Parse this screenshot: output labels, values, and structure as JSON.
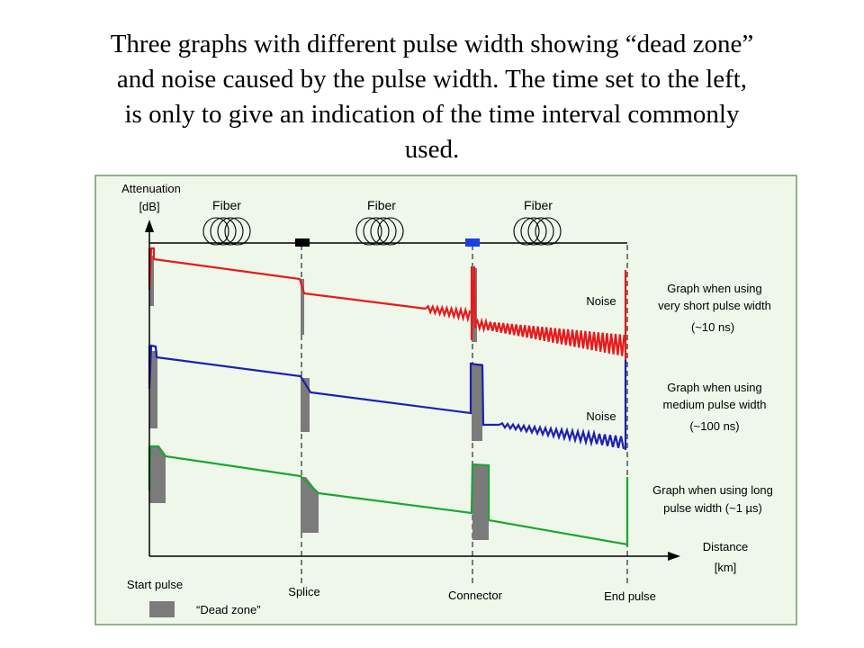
{
  "caption": [
    "Three graphs with different pulse width showing “dead zone”",
    "and noise caused by the pulse width. The time set to the left,",
    "is only to give an indication of the time interval commonly",
    "used."
  ],
  "axes": {
    "y_label_1": "Attenuation",
    "y_label_2": "[dB]",
    "x_label_1": "Distance",
    "x_label_2": "[km]"
  },
  "fibers": [
    "Fiber",
    "Fiber",
    "Fiber"
  ],
  "events": {
    "start": "Start pulse",
    "splice": "Splice",
    "connector": "Connector",
    "end": "End pulse"
  },
  "noise_labels": [
    "Noise",
    "Noise"
  ],
  "graphs": [
    {
      "line1": "Graph when using",
      "line2": "very short pulse width",
      "line3": "(~10 ns)",
      "color": "#e8191c"
    },
    {
      "line1": "Graph when using",
      "line2": "medium pulse width",
      "line3": "(~100 ns)",
      "color": "#1f1fb0"
    },
    {
      "line1": "Graph when using long",
      "line2": "pulse width (~1 µs)",
      "color": "#1aa531"
    }
  ],
  "legend": {
    "label": "“Dead zone”"
  },
  "colors": {
    "panel_bg": "#eef7ea",
    "panel_border": "#6f9c67",
    "dead_zone": "#7b7b7b",
    "splice_marker": "#000000",
    "connector_marker": "#1b3fe0"
  }
}
